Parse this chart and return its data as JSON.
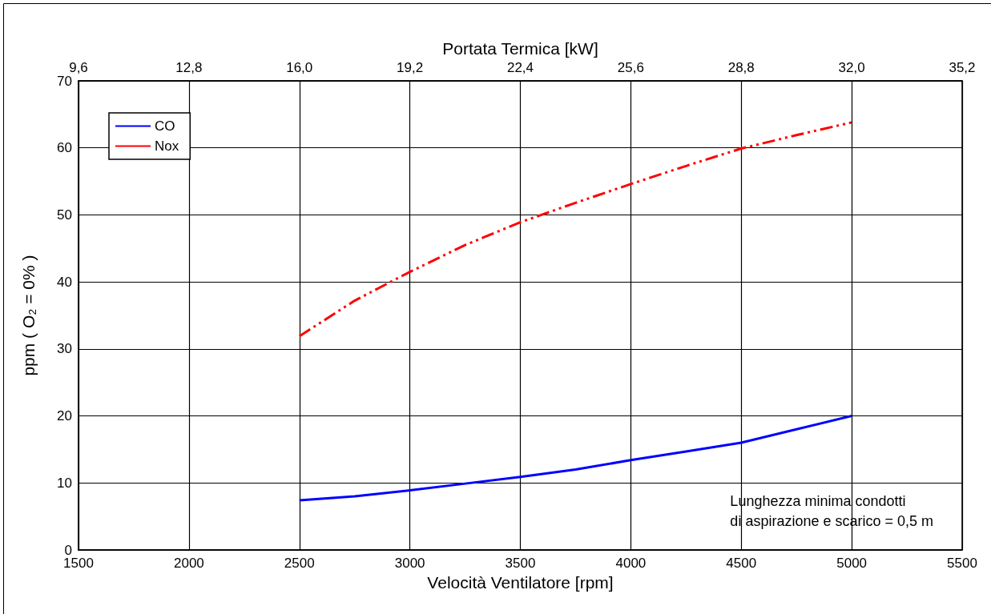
{
  "chart_data": {
    "type": "line",
    "xlabel": "Velocità Ventilatore [rpm]",
    "ylabel": "ppm ( O₂ = 0% )",
    "x2label": "Portata Termica [kW]",
    "x": [
      2500,
      2750,
      3000,
      3250,
      3500,
      3750,
      4000,
      4250,
      4500,
      4750,
      5000
    ],
    "series": [
      {
        "name": "CO",
        "color": "#0000ff",
        "line_style": "solid",
        "values": [
          7.4,
          8.0,
          8.9,
          9.9,
          10.9,
          12.0,
          13.4,
          14.7,
          16.0,
          18.0,
          20.0
        ]
      },
      {
        "name": "Nox",
        "color": "#ff0000",
        "line_style": "dashed",
        "values": [
          31.9,
          37.2,
          41.5,
          45.5,
          48.9,
          51.8,
          54.6,
          57.3,
          59.9,
          61.9,
          63.8
        ]
      }
    ],
    "xlim": [
      1500,
      5500
    ],
    "xticks": [
      1500,
      2000,
      2500,
      3000,
      3500,
      4000,
      4500,
      5000,
      5500
    ],
    "x2lim": [
      9.6,
      35.2
    ],
    "x2ticks": [
      {
        "value": 9.6,
        "label": "9,6"
      },
      {
        "value": 12.8,
        "label": "12,8"
      },
      {
        "value": 16.0,
        "label": "16,0"
      },
      {
        "value": 19.2,
        "label": "19,2"
      },
      {
        "value": 22.4,
        "label": "22,4"
      },
      {
        "value": 25.6,
        "label": "25,6"
      },
      {
        "value": 28.8,
        "label": "28,8"
      },
      {
        "value": 32.0,
        "label": "32,0"
      },
      {
        "value": 35.2,
        "label": "35,2"
      }
    ],
    "ylim": [
      0,
      70
    ],
    "yticks": [
      0,
      10,
      20,
      30,
      40,
      50,
      60,
      70
    ],
    "grid": true,
    "legend": "top left",
    "marker": "none",
    "annotations": [
      "Lunghezza minima condotti\ndi aspirazione e scarico = 0,5 m"
    ]
  }
}
